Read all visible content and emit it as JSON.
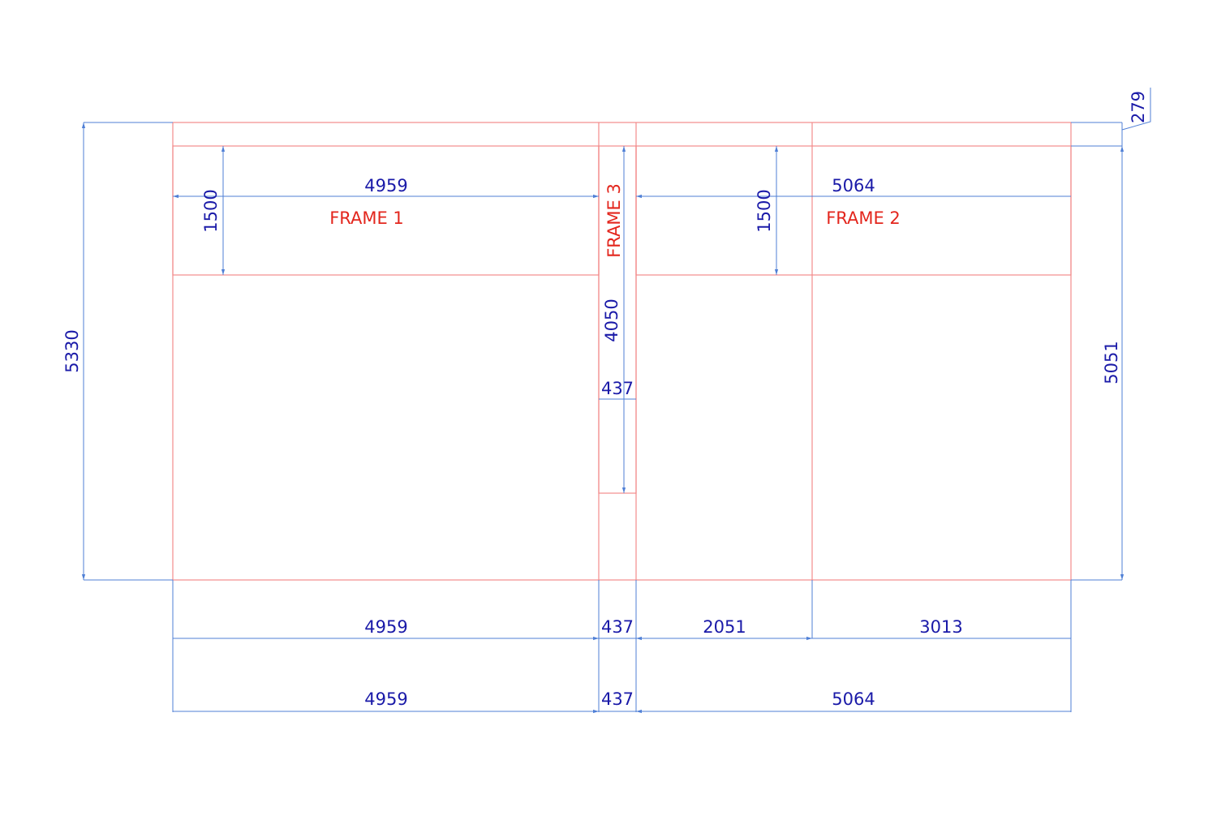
{
  "frame_labels": [
    "FRAME 1",
    "FRAME 3",
    "FRAME 2"
  ],
  "dimensions": [
    "4959",
    "1500",
    "4050",
    "437",
    "1500",
    "5064",
    "5330",
    "5051",
    "279",
    "4959",
    "437",
    "2051",
    "3013",
    "4959",
    "437",
    "5064"
  ]
}
